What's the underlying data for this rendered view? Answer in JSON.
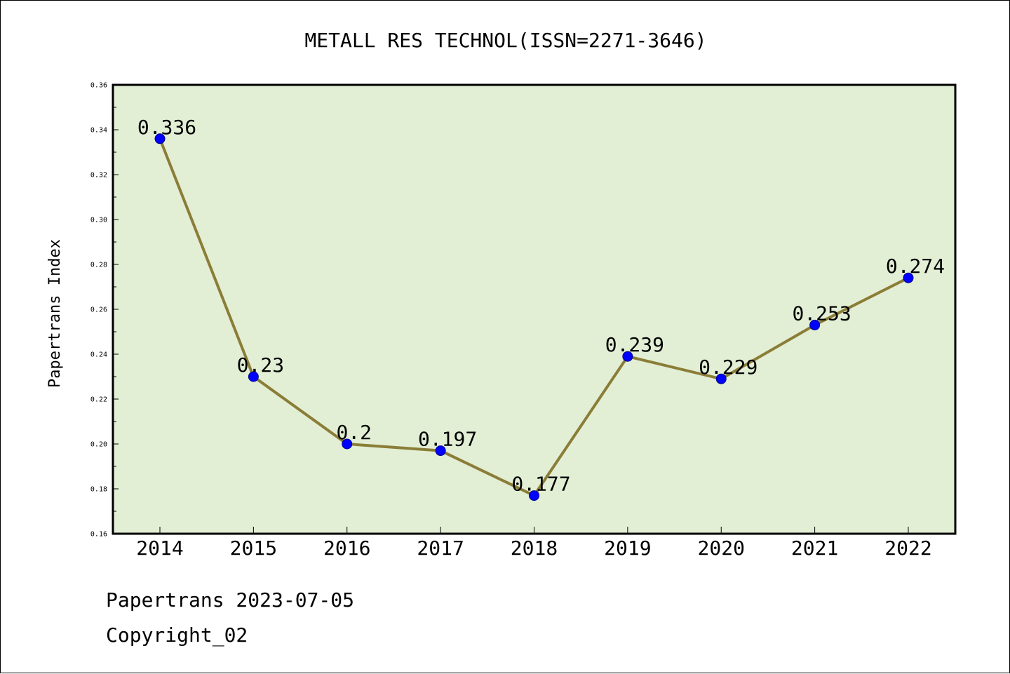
{
  "chart_data": {
    "type": "line",
    "title": "METALL RES TECHNOL(ISSN=2271-3646)",
    "ylabel": "Papertrans Index",
    "xlabel": "",
    "categories": [
      "2014",
      "2015",
      "2016",
      "2017",
      "2018",
      "2019",
      "2020",
      "2021",
      "2022"
    ],
    "values": [
      0.336,
      0.23,
      0.2,
      0.197,
      0.177,
      0.239,
      0.229,
      0.253,
      0.274
    ],
    "value_labels": [
      "0.336",
      "0.23",
      "0.2",
      "0.197",
      "0.177",
      "0.239",
      "0.229",
      "0.253",
      "0.274"
    ],
    "ylim": [
      0.16,
      0.36
    ],
    "yticks": [
      "0.16",
      "0.18",
      "0.20",
      "0.22",
      "0.24",
      "0.26",
      "0.28",
      "0.30",
      "0.32",
      "0.34",
      "0.36"
    ],
    "grid": false,
    "colors": {
      "plot_background": "#e2efd5",
      "line": "#8b7d37",
      "marker": "#0000ff"
    }
  },
  "footer": {
    "line1": "Papertrans 2023-07-05",
    "line2": "Copyright_02"
  }
}
